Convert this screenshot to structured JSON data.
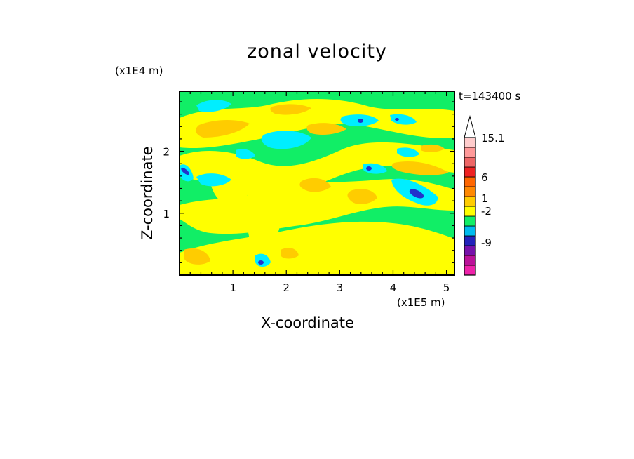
{
  "chart_data": {
    "type": "heatmap",
    "title": "zonal velocity",
    "xlabel": "X-coordinate",
    "ylabel": "Z-coordinate",
    "x_unit": "(x1E5 m)",
    "y_unit": "(x1E4 m)",
    "time_label": "t=143400 s",
    "xlim": [
      0,
      5.15
    ],
    "ylim": [
      0,
      2.97
    ],
    "x_ticks": [
      1,
      2,
      3,
      4,
      5
    ],
    "x_tick_labels": [
      "1",
      "2",
      "3",
      "4",
      "5"
    ],
    "y_ticks": [
      1,
      2
    ],
    "y_tick_labels": [
      "1",
      "2"
    ],
    "colorbar": {
      "colors": [
        "#ee22aa",
        "#bb1199",
        "#7711aa",
        "#2222bb",
        "#00bbee",
        "#11ee66",
        "#ffff00",
        "#ffcc00",
        "#ff8800",
        "#ff6600",
        "#ee2222",
        "#ee6666",
        "#ff9999",
        "#ffcccc"
      ],
      "labels": [
        {
          "text": "-9",
          "value": -9
        },
        {
          "text": "-2",
          "value": -2
        },
        {
          "text": "1",
          "value": 1
        },
        {
          "text": "6",
          "value": 6
        },
        {
          "text": "15.1",
          "value": 15.1
        }
      ]
    },
    "field_colors": {
      "green": "#11ee66",
      "yellow": "#ffff00",
      "orange": "#ffcc00",
      "cyan": "#00eeff",
      "blue": "#2233cc"
    }
  }
}
